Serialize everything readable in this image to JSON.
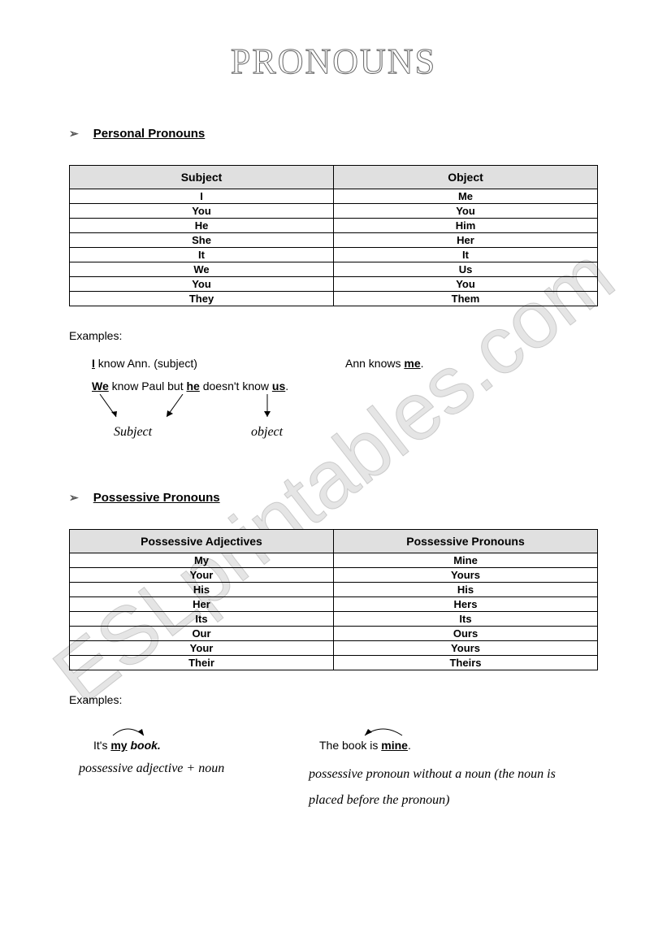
{
  "title": "PRONOUNS",
  "section1": {
    "heading": "Personal Pronouns",
    "table": {
      "headers": [
        "Subject",
        "Object"
      ],
      "rows": [
        [
          "I",
          "Me"
        ],
        [
          "You",
          "You"
        ],
        [
          "He",
          "Him"
        ],
        [
          "She",
          "Her"
        ],
        [
          "It",
          "It"
        ],
        [
          "We",
          "Us"
        ],
        [
          "You",
          "You"
        ],
        [
          "They",
          "Them"
        ]
      ]
    },
    "examplesLabel": "Examples:",
    "ex1": {
      "left_pre": "I",
      "left_post": " know Ann.  (subject)",
      "right_pre": "Ann knows ",
      "right_post": "me",
      "right_end": "."
    },
    "ex2": {
      "we": "We",
      "mid1": " know Paul but ",
      "he": "he",
      "mid2": " doesn't know ",
      "us": "us",
      "end": "."
    },
    "labels": {
      "subject": "Subject",
      "object": "object"
    }
  },
  "section2": {
    "heading": "Possessive Pronouns",
    "table": {
      "headers": [
        "Possessive Adjectives",
        "Possessive Pronouns"
      ],
      "rows": [
        [
          "My",
          "Mine"
        ],
        [
          "Your",
          "Yours"
        ],
        [
          "His",
          "His"
        ],
        [
          "Her",
          "Hers"
        ],
        [
          "Its",
          "Its"
        ],
        [
          "Our",
          "Ours"
        ],
        [
          "Your",
          "Yours"
        ],
        [
          "Their",
          "Theirs"
        ]
      ]
    },
    "examplesLabel": "Examples:",
    "ex1": {
      "pre": "It's ",
      "my": "my",
      "post": " book.",
      "caption": "possessive adjective + noun"
    },
    "ex2": {
      "pre": "The book is ",
      "mine": "mine",
      "post": ".",
      "caption": "possessive pronoun without a noun (the noun is placed before the pronoun)"
    }
  },
  "watermark": "ESLprintables.com"
}
